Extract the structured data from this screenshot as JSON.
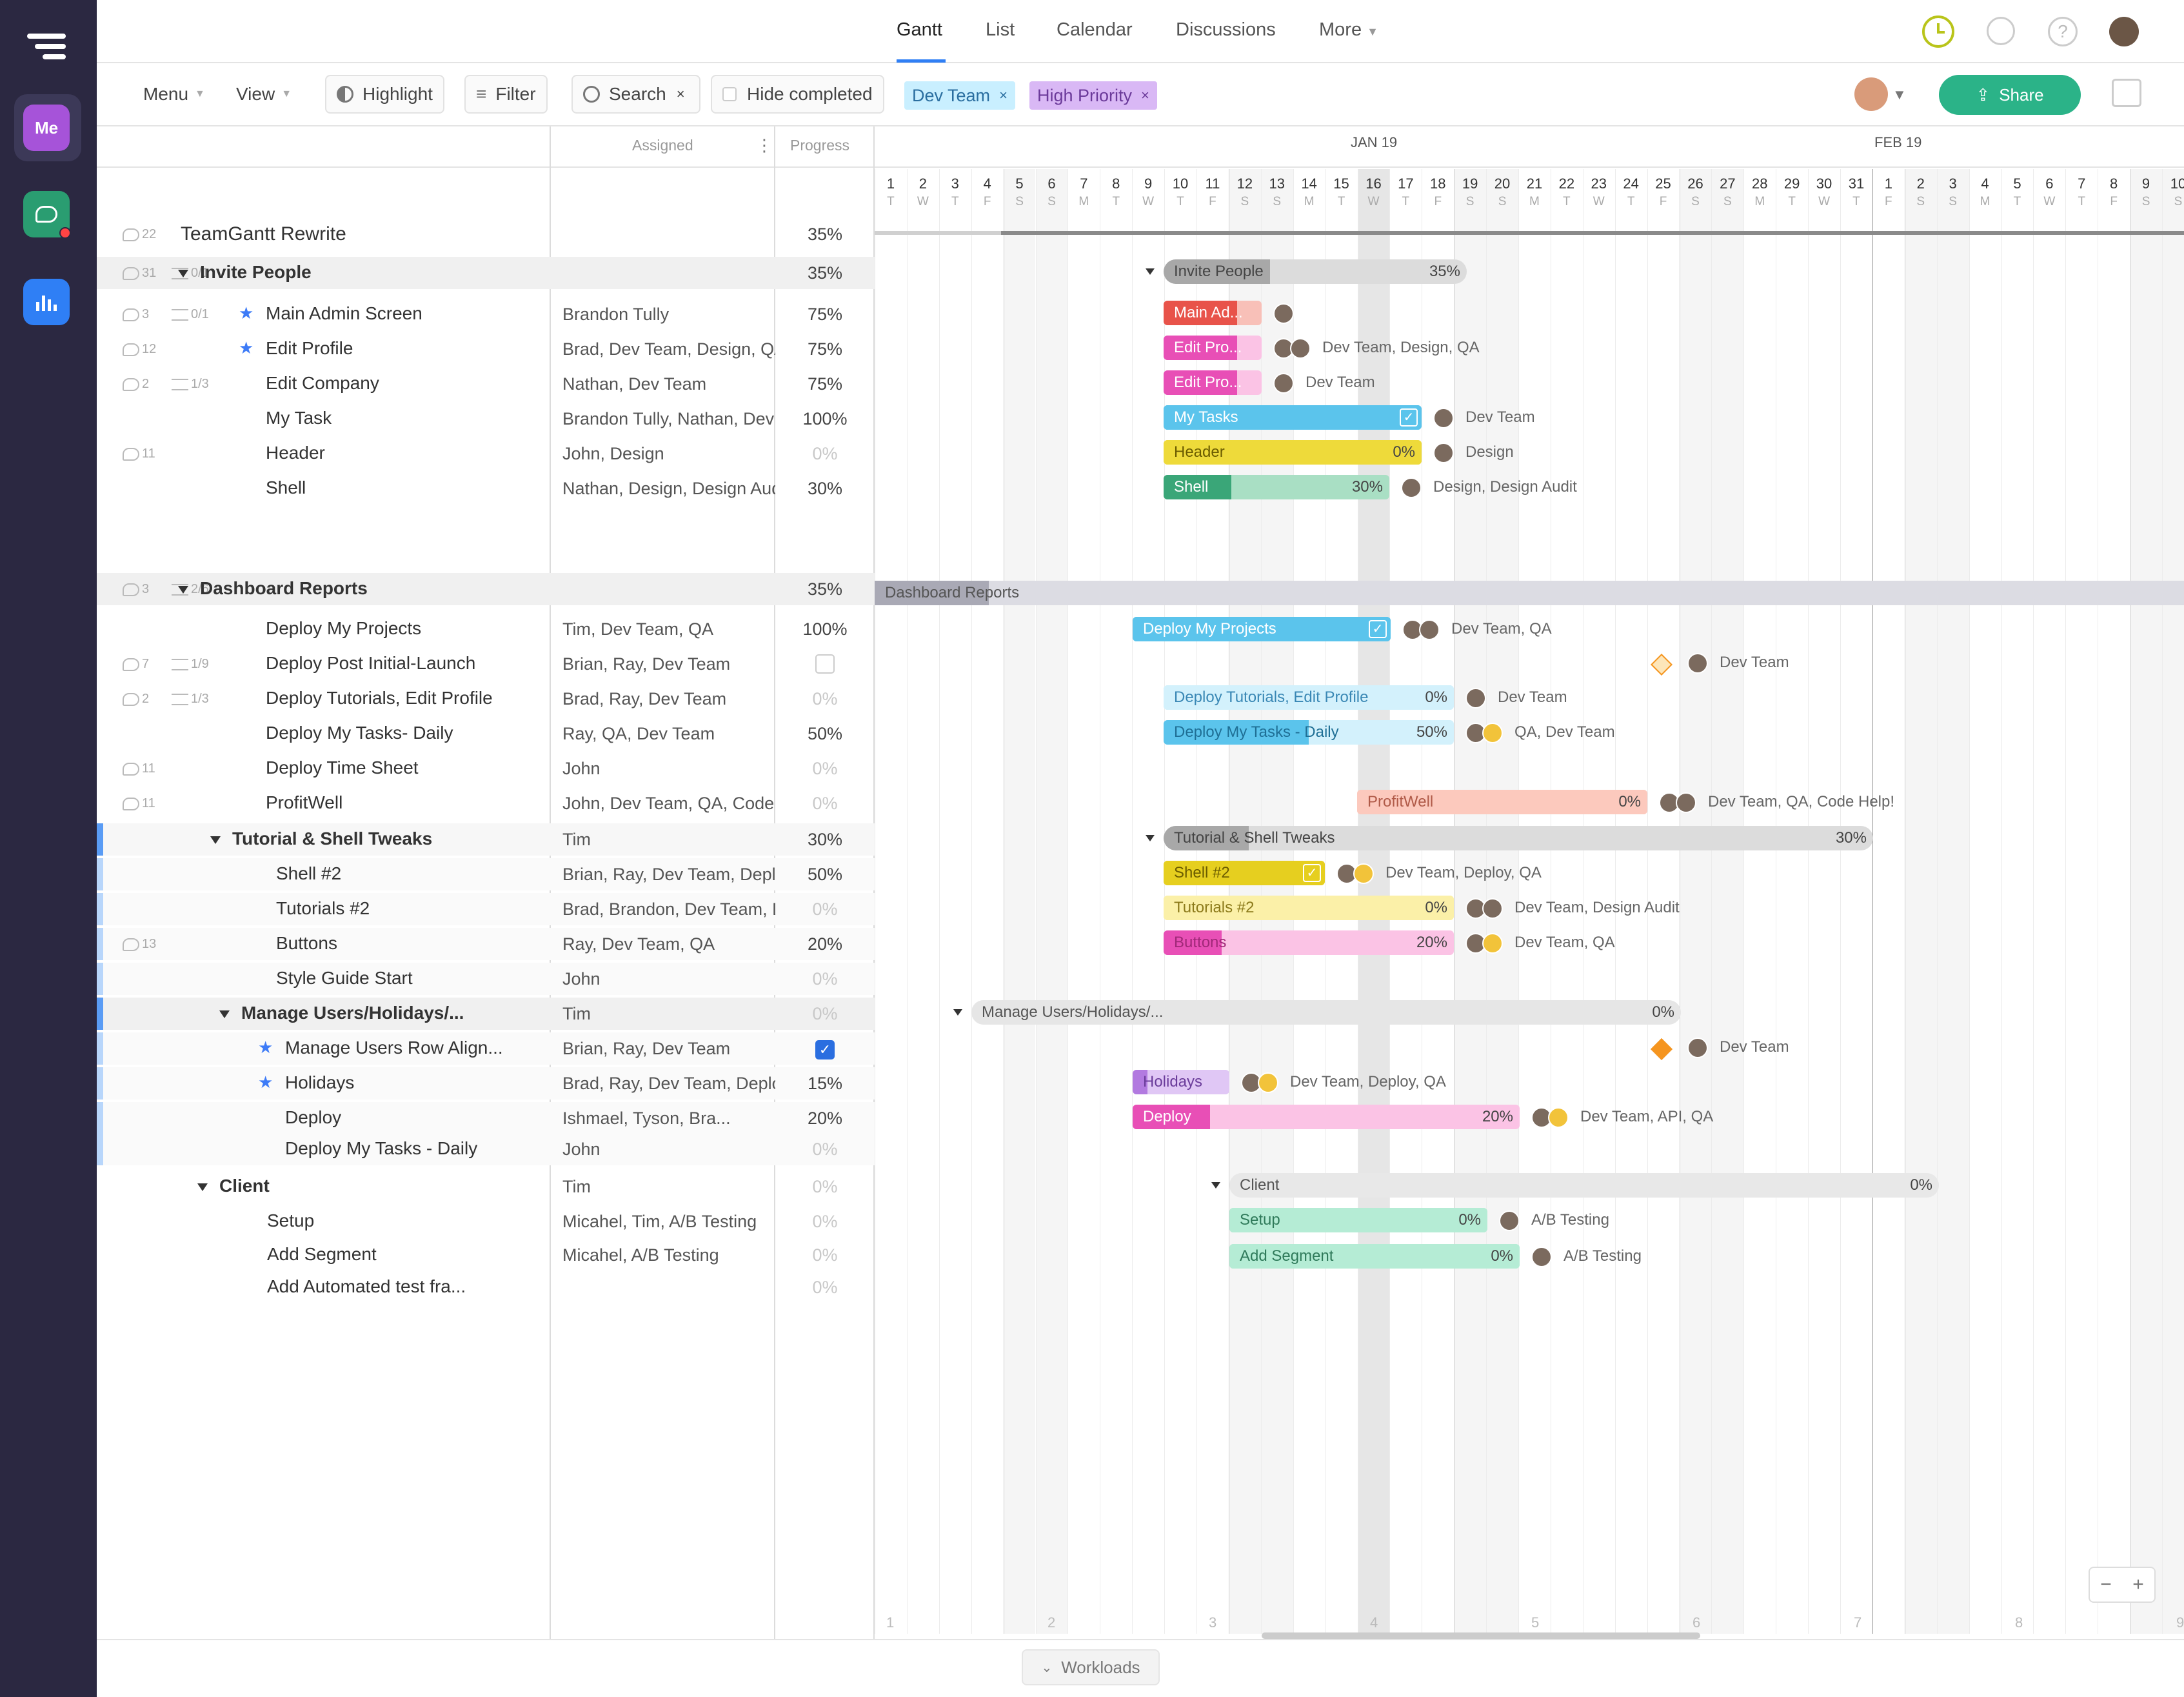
{
  "nav": {
    "tabs": [
      "Gantt",
      "List",
      "Calendar",
      "Discussions",
      "More"
    ],
    "active_tab": "Gantt",
    "rail_me": "Me"
  },
  "toolbar": {
    "menu": "Menu",
    "view": "View",
    "highlight": "Highlight",
    "filter": "Filter",
    "search": "Search",
    "hide_completed": "Hide completed",
    "chips": [
      "Dev Team",
      "High Priority"
    ],
    "share": "Share"
  },
  "columns": {
    "assigned": "Assigned",
    "progress": "Progress"
  },
  "timeline": {
    "month1": "JAN 19",
    "month2": "FEB 19",
    "days": [
      "1",
      "2",
      "3",
      "4",
      "5",
      "6",
      "7",
      "8",
      "9",
      "10",
      "11",
      "12",
      "13",
      "14",
      "15",
      "16",
      "17",
      "18",
      "19",
      "20",
      "21",
      "22",
      "23",
      "24",
      "25",
      "26",
      "27",
      "28",
      "29",
      "30",
      "31",
      "1",
      "2",
      "3",
      "4",
      "5",
      "6",
      "7",
      "8",
      "9",
      "10"
    ],
    "weekdays": [
      "T",
      "W",
      "T",
      "F",
      "S",
      "S",
      "M",
      "T",
      "W",
      "T",
      "F",
      "S",
      "S",
      "M",
      "T",
      "W",
      "T",
      "F",
      "S",
      "S",
      "M",
      "T",
      "W",
      "T",
      "F",
      "S",
      "S",
      "M",
      "T",
      "W",
      "T",
      "F",
      "S",
      "S",
      "M",
      "T",
      "W",
      "T",
      "F",
      "S",
      "S"
    ],
    "weeks": [
      "1",
      "2",
      "3",
      "4",
      "5",
      "6",
      "7",
      "8",
      "9"
    ]
  },
  "rows": [
    {
      "name": "TeamGantt Rewrite",
      "assigned": "",
      "progress": "35%",
      "comments": "22",
      "type": "project"
    },
    {
      "name": "Invite People",
      "assigned": "",
      "progress": "35%",
      "comments": "31",
      "checklist": "0/1",
      "type": "group"
    },
    {
      "name": "Main Admin Screen",
      "assigned": "Brandon Tully",
      "progress": "75%",
      "comments": "3",
      "checklist": "0/1",
      "star": true
    },
    {
      "name": "Edit Profile",
      "assigned": "Brad, Dev Team, Design, QA",
      "progress": "75%",
      "comments": "12",
      "star": true
    },
    {
      "name": "Edit Company",
      "assigned": "Nathan, Dev Team",
      "progress": "75%",
      "comments": "2",
      "checklist": "1/3"
    },
    {
      "name": "My Task",
      "assigned": "Brandon Tully, Nathan, Dev Team",
      "progress": "100%"
    },
    {
      "name": "Header",
      "assigned": "John, Design",
      "progress": "0%",
      "comments": "11"
    },
    {
      "name": "Shell",
      "assigned": "Nathan, Design, Design Audit",
      "progress": "30%"
    },
    {
      "name": "Dashboard Reports",
      "assigned": "",
      "progress": "35%",
      "comments": "3",
      "checklist": "2/6",
      "type": "group"
    },
    {
      "name": "Deploy My Projects",
      "assigned": "Tim, Dev Team, QA",
      "progress": "100%"
    },
    {
      "name": "Deploy Post Initial-Launch",
      "assigned": "Brian, Ray, Dev Team",
      "progress": "",
      "comments": "7",
      "checklist": "1/9"
    },
    {
      "name": "Deploy Tutorials, Edit Profile",
      "assigned": "Brad, Ray, Dev Team",
      "progress": "0%",
      "comments": "2",
      "checklist": "1/3"
    },
    {
      "name": "Deploy My Tasks- Daily",
      "assigned": "Ray, QA, Dev Team",
      "progress": "50%"
    },
    {
      "name": "Deploy Time Sheet",
      "assigned": "John",
      "progress": "0%",
      "comments": "11"
    },
    {
      "name": "ProfitWell",
      "assigned": "John, Dev Team, QA, Code Help!",
      "progress": "0%",
      "comments": "11"
    },
    {
      "name": "Tutorial & Shell Tweaks",
      "assigned": "Tim",
      "progress": "30%",
      "type": "subgroup"
    },
    {
      "name": "Shell #2",
      "assigned": "Brian, Ray, Dev Team, Deploy, QA",
      "progress": "50%"
    },
    {
      "name": "Tutorials #2",
      "assigned": "Brad, Brandon, Dev Team, Design Audit",
      "progress": "0%"
    },
    {
      "name": "Buttons",
      "assigned": "Ray, Dev Team, QA",
      "progress": "20%",
      "comments": "13"
    },
    {
      "name": "Style Guide Start",
      "assigned": "John",
      "progress": "0%"
    },
    {
      "name": "Manage Users/Holidays/...",
      "assigned": "Tim",
      "progress": "0%",
      "type": "subgroup"
    },
    {
      "name": "Manage Users Row Align...",
      "assigned": "Brian, Ray, Dev Team",
      "progress": "",
      "star": true
    },
    {
      "name": "Holidays",
      "assigned": "Brad, Ray, Dev Team, Deploy, QA",
      "progress": "15%",
      "star": true
    },
    {
      "name": "Deploy",
      "assigned": "Ishmael, Tyson, Bra...",
      "progress": "20%"
    },
    {
      "name": "Deploy My Tasks - Daily",
      "assigned": "John",
      "progress": "0%"
    },
    {
      "name": "Client",
      "assigned": "Tim",
      "progress": "0%",
      "type": "group2"
    },
    {
      "name": "Setup",
      "assigned": "Micahel, Tim, A/B Testing",
      "progress": "0%"
    },
    {
      "name": "Add Segment",
      "assigned": "Micahel, A/B Testing",
      "progress": "0%"
    },
    {
      "name": "Add Automated test fra...",
      "assigned": "",
      "progress": "0%"
    }
  ],
  "bars": [
    {
      "label": "Invite People",
      "pct": "35%",
      "side": ""
    },
    {
      "label": "Main Ad...",
      "pct": "",
      "side": ""
    },
    {
      "label": "Edit Pro...",
      "pct": "",
      "side": "Dev Team, Design, QA"
    },
    {
      "label": "Edit Pro...",
      "pct": "",
      "side": "Dev Team"
    },
    {
      "label": "My Tasks",
      "pct": "",
      "side": "Dev Team"
    },
    {
      "label": "Header",
      "pct": "0%",
      "side": "Design"
    },
    {
      "label": "Shell",
      "pct": "30%",
      "side": "Design, Design Audit"
    },
    {
      "label": "Dashboard Reports",
      "pct": "",
      "side": ""
    },
    {
      "label": "Deploy My Projects",
      "pct": "",
      "side": "Dev Team, QA"
    },
    {
      "label": "",
      "pct": "",
      "side": "Dev Team"
    },
    {
      "label": "Deploy Tutorials, Edit Profile",
      "pct": "0%",
      "side": "Dev Team"
    },
    {
      "label": "Deploy My Tasks - Daily",
      "pct": "50%",
      "side": "QA, Dev Team"
    },
    {
      "label": "ProfitWell",
      "pct": "0%",
      "side": "Dev Team, QA, Code Help!"
    },
    {
      "label": "Tutorial & Shell Tweaks",
      "pct": "30%",
      "side": ""
    },
    {
      "label": "Shell #2",
      "pct": "",
      "side": "Dev Team, Deploy, QA"
    },
    {
      "label": "Tutorials #2",
      "pct": "0%",
      "side": "Dev Team, Design Audit"
    },
    {
      "label": "Buttons",
      "pct": "20%",
      "side": "Dev Team, QA"
    },
    {
      "label": "Manage Users/Holidays/...",
      "pct": "0%",
      "side": ""
    },
    {
      "label": "",
      "pct": "",
      "side": "Dev Team"
    },
    {
      "label": "Holidays",
      "pct": "",
      "side": "Dev Team, Deploy, QA"
    },
    {
      "label": "Deploy",
      "pct": "20%",
      "side": "Dev Team, API, QA"
    },
    {
      "label": "Client",
      "pct": "0%",
      "side": ""
    },
    {
      "label": "Setup",
      "pct": "0%",
      "side": "A/B Testing"
    },
    {
      "label": "Add Segment",
      "pct": "0%",
      "side": "A/B Testing"
    }
  ],
  "bottom": {
    "workloads": "Workloads"
  },
  "colors": {
    "accent": "#2bb388",
    "rail": "#2b2841",
    "chip_dev": "#c9efff",
    "chip_priority": "#d9b8f5"
  }
}
